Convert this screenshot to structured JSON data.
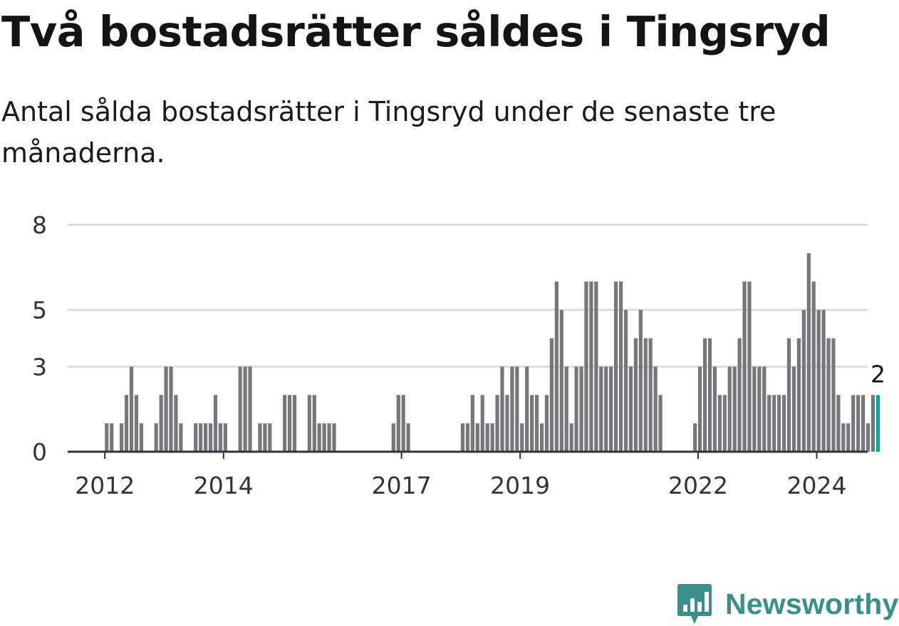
{
  "title": "Två bostadsrätter såldes i Tingsryd",
  "subtitle": "Antal sålda bostadsrätter i Tingsryd under de senaste tre månaderna.",
  "brand": {
    "name": "Newsworthy",
    "logo_icon": "bar-chart-pin-icon",
    "color": "#3b8f8a"
  },
  "colors": {
    "bar": "#77767b",
    "highlight": "#13a39a",
    "grid": "#dddddd",
    "axis": "#333333"
  },
  "chart_data": {
    "type": "bar",
    "x_axis": "monthly time series, one bar per month (rolling three-month count)",
    "x_start": "2012-01",
    "x_ticks": [
      "2012",
      "2014",
      "2017",
      "2019",
      "2022",
      "2024"
    ],
    "y_ticks": [
      "0",
      "3",
      "5",
      "8"
    ],
    "ylim": [
      0,
      8
    ],
    "grid": true,
    "values": [
      1,
      1,
      0,
      1,
      2,
      3,
      2,
      1,
      0,
      0,
      1,
      2,
      3,
      3,
      2,
      1,
      0,
      0,
      1,
      1,
      1,
      1,
      2,
      1,
      1,
      0,
      0,
      3,
      3,
      3,
      0,
      1,
      1,
      1,
      0,
      0,
      2,
      2,
      2,
      0,
      0,
      2,
      2,
      1,
      1,
      1,
      1,
      0,
      0,
      0,
      0,
      0,
      0,
      0,
      0,
      0,
      0,
      0,
      1,
      2,
      2,
      1,
      0,
      0,
      0,
      0,
      0,
      0,
      0,
      0,
      0,
      0,
      1,
      1,
      2,
      1,
      2,
      1,
      1,
      2,
      3,
      2,
      3,
      3,
      1,
      3,
      2,
      2,
      1,
      2,
      4,
      6,
      5,
      3,
      1,
      3,
      3,
      6,
      6,
      6,
      3,
      3,
      3,
      6,
      6,
      5,
      3,
      4,
      5,
      4,
      4,
      3,
      2,
      0,
      0,
      0,
      0,
      0,
      0,
      1,
      3,
      4,
      4,
      3,
      2,
      2,
      3,
      3,
      4,
      6,
      6,
      3,
      3,
      3,
      2,
      2,
      2,
      2,
      4,
      3,
      4,
      5,
      7,
      6,
      5,
      5,
      4,
      4,
      2,
      1,
      1,
      2,
      2,
      2,
      1,
      2,
      2
    ],
    "highlight_last": true,
    "annotation": "2"
  }
}
